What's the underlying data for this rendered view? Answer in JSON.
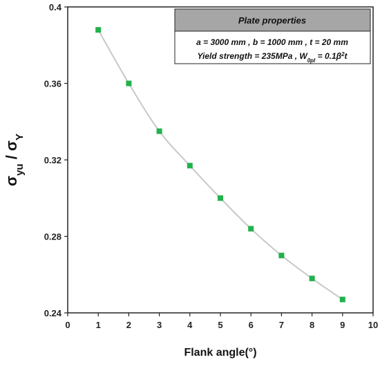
{
  "chart_data": {
    "type": "line",
    "x": [
      1,
      2,
      3,
      4,
      5,
      6,
      7,
      8,
      9
    ],
    "series": [
      {
        "values": [
          0.388,
          0.36,
          0.335,
          0.317,
          0.3,
          0.284,
          0.27,
          0.258,
          0.247
        ]
      }
    ],
    "xlabel": "Flank angle(°)",
    "ylabel_main": "σ",
    "ylabel_sub1": "yu",
    "ylabel_mid": " / σ",
    "ylabel_sub2": "Y",
    "xlim": [
      0,
      10
    ],
    "ylim": [
      0.24,
      0.4
    ],
    "xticks": [
      0,
      1,
      2,
      3,
      4,
      5,
      6,
      7,
      8,
      9,
      10
    ],
    "yticks": [
      0.24,
      0.28,
      0.32,
      0.36,
      0.4
    ],
    "ytick_labels": [
      "0.24",
      "0.28",
      "0.32",
      "0.36",
      "0.4"
    ],
    "grid": false,
    "marker_color": "#22b14c",
    "line_color": "#c8c8c8",
    "legend_box": {
      "title": "Plate properties",
      "line1": "a = 3000 mm  ,  b = 1000 mm  ,  t = 20 mm",
      "line2_prefix": "Yield strength = 235MPa  ,  W",
      "line2_sub": "0pl",
      "line2_suffix": " = 0.1β",
      "line2_sup": "2",
      "line2_end": "t",
      "placement": "top-right"
    }
  }
}
